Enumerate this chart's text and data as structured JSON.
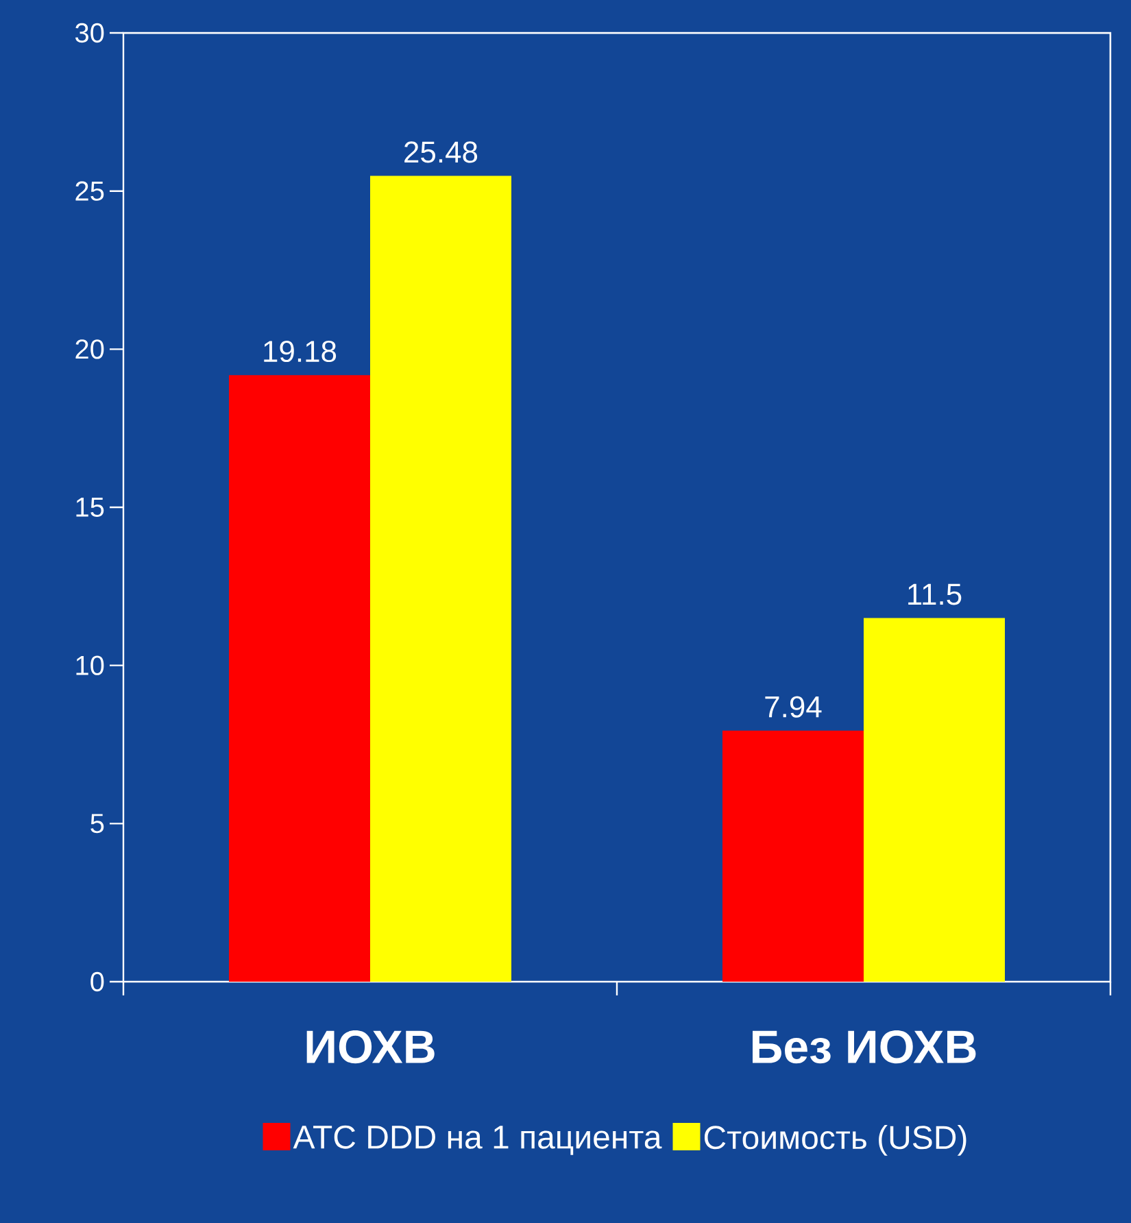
{
  "chart_data": {
    "type": "bar",
    "categories": [
      "ИОХВ",
      "Без ИОХВ"
    ],
    "series": [
      {
        "name": "ATC DDD на 1 пациента",
        "color": "#ff0000",
        "values": [
          19.18,
          7.94
        ]
      },
      {
        "name": "Стоимость (USD)",
        "color": "#ffff00",
        "values": [
          25.48,
          11.5
        ]
      }
    ],
    "ylim": [
      0,
      30
    ],
    "yticks": [
      0,
      5,
      10,
      15,
      20,
      25,
      30
    ],
    "data_labels": true,
    "legend": "bottom"
  }
}
